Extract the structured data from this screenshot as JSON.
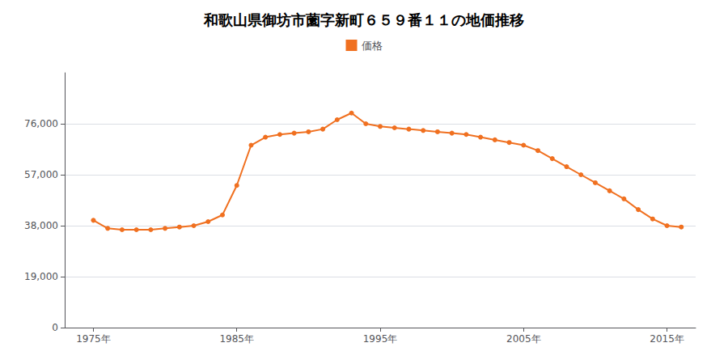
{
  "chart_data": {
    "type": "line",
    "title": "和歌山県御坊市薗字新町６５９番１１の地価推移",
    "x": [
      1975,
      1976,
      1977,
      1978,
      1979,
      1980,
      1981,
      1982,
      1983,
      1984,
      1985,
      1986,
      1987,
      1988,
      1989,
      1990,
      1991,
      1992,
      1993,
      1994,
      1995,
      1996,
      1997,
      1998,
      1999,
      2000,
      2001,
      2002,
      2003,
      2004,
      2005,
      2006,
      2007,
      2008,
      2009,
      2010,
      2011,
      2012,
      2013,
      2014,
      2015,
      2016
    ],
    "series": [
      {
        "name": "価格",
        "color": "#f07020",
        "marker": "circle",
        "values": [
          40000,
          37000,
          36500,
          36500,
          36500,
          37000,
          37500,
          38000,
          39500,
          42000,
          53000,
          68000,
          71000,
          72000,
          72500,
          73000,
          74000,
          77500,
          80000,
          76000,
          75000,
          74500,
          74000,
          73500,
          73000,
          72500,
          72000,
          71000,
          70000,
          69000,
          68000,
          66000,
          63000,
          60000,
          57000,
          54000,
          51000,
          48000,
          44000,
          40500,
          38000,
          37500
        ]
      }
    ],
    "xlim": [
      1973,
      2017
    ],
    "xticks": [
      {
        "value": 1975,
        "label": "1975年"
      },
      {
        "value": 1985,
        "label": "1985年"
      },
      {
        "value": 1995,
        "label": "1995年"
      },
      {
        "value": 2005,
        "label": "2005年"
      },
      {
        "value": 2015,
        "label": "2015年"
      }
    ],
    "ylim": [
      0,
      95000
    ],
    "yticks": [
      0,
      {
        "value": 19000,
        "label": "19,000"
      },
      {
        "value": 38000,
        "label": "38,000"
      },
      {
        "value": 57000,
        "label": "57,000"
      },
      {
        "value": 76000,
        "label": "76,000"
      }
    ],
    "grid": true,
    "legend": "top"
  }
}
